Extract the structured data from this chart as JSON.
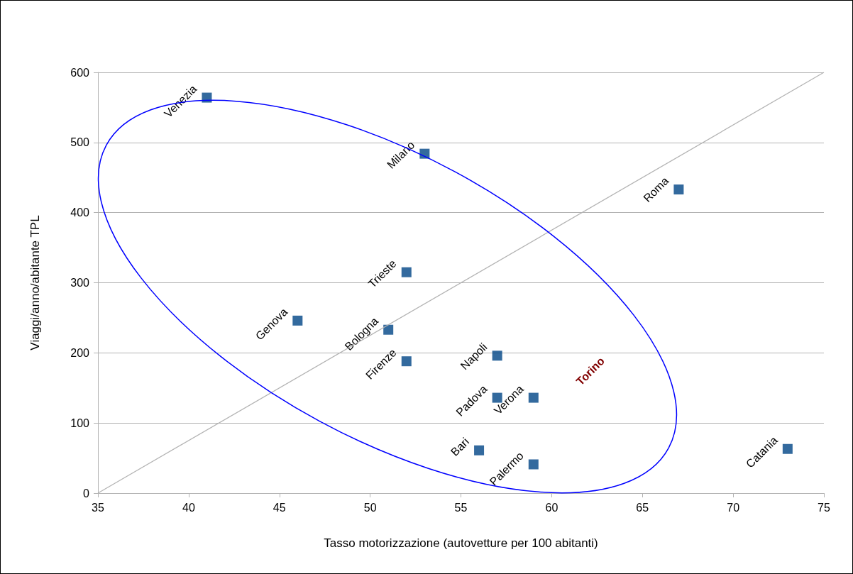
{
  "chart_data": {
    "type": "scatter",
    "xlabel": "Tasso motorizzazione (autovetture per 100 abitanti)",
    "ylabel": "Viaggi/anno/abitante TPL",
    "xlim": [
      35,
      75
    ],
    "xticks": [
      35,
      40,
      45,
      50,
      55,
      60,
      65,
      70,
      75
    ],
    "ylim": [
      0,
      600
    ],
    "yticks": [
      0,
      100,
      200,
      300,
      400,
      500,
      600
    ],
    "grid": "y",
    "marker": "square",
    "series": [
      {
        "color": "#004586",
        "x": [
          41,
          53,
          67,
          52,
          46,
          51,
          52,
          57,
          57,
          59,
          56,
          59,
          73
        ],
        "values": [
          564,
          484,
          433,
          315,
          246,
          233,
          188,
          196,
          136,
          136,
          61,
          41,
          63
        ]
      },
      {
        "type": "line",
        "color": "#b3b3b3",
        "x": [
          35,
          75
        ],
        "values": [
          0,
          600
        ],
        "marker": "none"
      }
    ],
    "annotations": [
      {
        "text": "Venezia",
        "x": 41,
        "y": 564
      },
      {
        "text": "Milano",
        "x": 53,
        "y": 484
      },
      {
        "text": "Roma",
        "x": 67,
        "y": 433
      },
      {
        "text": "Trieste",
        "x": 52,
        "y": 315
      },
      {
        "text": "Genova",
        "x": 46,
        "y": 246
      },
      {
        "text": "Bologna",
        "x": 51,
        "y": 233
      },
      {
        "text": "Firenze",
        "x": 52,
        "y": 188
      },
      {
        "text": "Napoli",
        "x": 57,
        "y": 196
      },
      {
        "text": "Padova",
        "x": 57,
        "y": 136
      },
      {
        "text": "Verona",
        "x": 59,
        "y": 136
      },
      {
        "text": "Bari",
        "x": 56,
        "y": 61
      },
      {
        "text": "Palermo",
        "x": 59,
        "y": 41
      },
      {
        "text": "Catania",
        "x": 73,
        "y": 63
      },
      "Torino"
    ]
  }
}
